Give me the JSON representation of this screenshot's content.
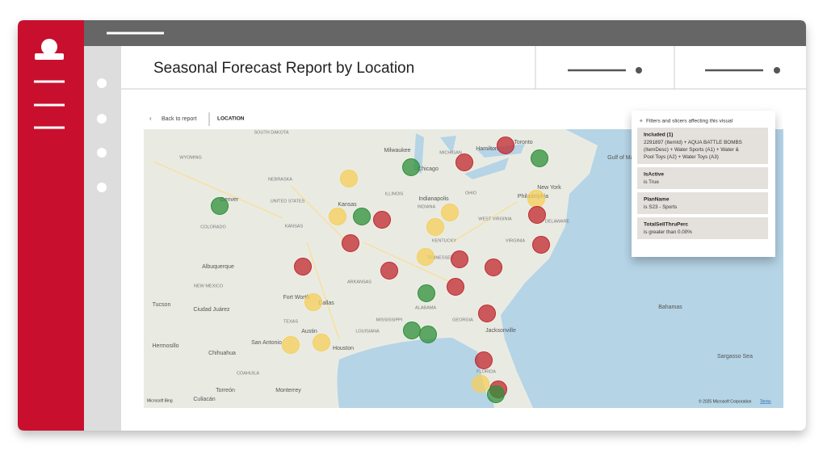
{
  "header": {
    "title": "Seasonal Forecast Report by Location"
  },
  "toolbar": {
    "back": "Back to report",
    "page": "LOCATION"
  },
  "filters": {
    "heading": "Filters and slicers affecting this visual",
    "cards": [
      {
        "title": "Included (1)",
        "value": "2291897 (ItemId) + AQUA BATTLE BOMBS (ItemDesc) + Water Sports (A1) + Water & Pool Toys (A2) + Water Toys (A3)"
      },
      {
        "title": "IsActive",
        "value": "is True"
      },
      {
        "title": "PlanName",
        "value": "is S23 - Sports"
      },
      {
        "title": "TotalSellThruPerc",
        "value": "is greater than 0.00%"
      }
    ]
  },
  "map": {
    "labels": [
      "SOUTH DAKOTA",
      "WYOMING",
      "NEBRASKA",
      "UNITED STATES",
      "Kansas",
      "KANSAS",
      "COLORADO",
      "Denver",
      "Albuquerque",
      "NEW MEXICO",
      "Tucson",
      "Ciudad Juárez",
      "Hermosillo",
      "Chihuahua",
      "COAHUILA",
      "Torreón",
      "Culiacán",
      "Monterrey",
      "San Antonio",
      "Houston",
      "Austin",
      "TEXAS",
      "Fort Worth",
      "Dallas",
      "ARKANSAS",
      "LOUISIANA",
      "MISSISSIPPI",
      "ALABAMA",
      "GEORGIA",
      "Jacksonville",
      "FLORIDA",
      "TENNESSEE",
      "KENTUCKY",
      "VIRGINIA",
      "WEST VIRGINIA",
      "OHIO",
      "INDIANA",
      "ILLINOIS",
      "Indianapolis",
      "Chicago",
      "Milwaukee",
      "MICHIGAN",
      "Hamilton",
      "Toronto",
      "New York",
      "Philadelphia",
      "DELAWARE",
      "Gulf of Maine",
      "Bahamas",
      "Sargasso Sea"
    ],
    "attribution": "Microsoft Bing",
    "copyright": "© 2025 Microsoft Corporation",
    "terms": "Terms"
  }
}
